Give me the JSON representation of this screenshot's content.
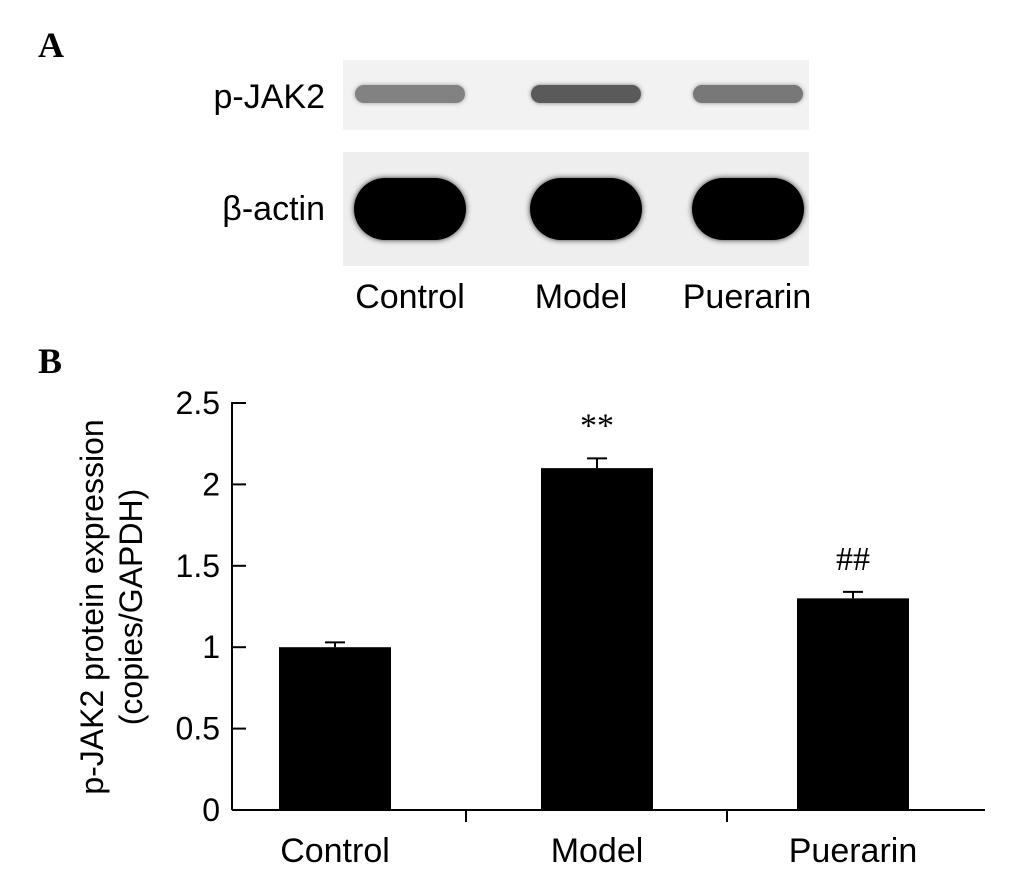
{
  "panel_a": {
    "letter": "A",
    "rows": [
      {
        "label": "p-JAK2",
        "intensities": [
          0.35,
          0.55,
          0.4
        ]
      },
      {
        "label": "β-actin",
        "intensities": [
          1.0,
          1.0,
          1.0
        ]
      }
    ],
    "lanes": [
      "Control",
      "Model",
      "Puerarin"
    ]
  },
  "panel_b": {
    "letter": "B"
  },
  "chart_data": {
    "type": "bar",
    "categories": [
      "Control",
      "Model",
      "Puerarin"
    ],
    "values": [
      1.0,
      2.1,
      1.3
    ],
    "errors": [
      0.03,
      0.06,
      0.04
    ],
    "annotations": [
      "",
      "**",
      "##"
    ],
    "ylabel_line1": "p-JAK2 protein expression",
    "ylabel_line2": "(copies/GAPDH)",
    "xlabel": "",
    "ylim": [
      0,
      2.5
    ],
    "yticks": [
      0,
      0.5,
      1,
      1.5,
      2,
      2.5
    ],
    "ytick_labels": [
      "0",
      "0.5",
      "1",
      "1.5",
      "2",
      "2.5"
    ],
    "bar_color": "#000000",
    "grid": false
  }
}
